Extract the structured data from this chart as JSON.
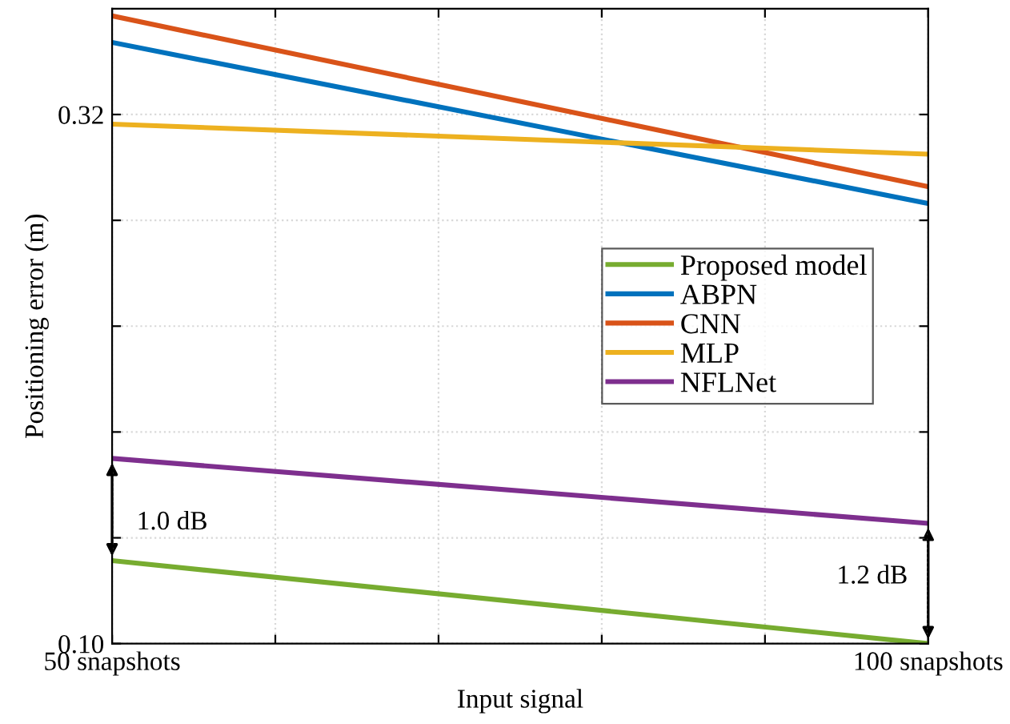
{
  "chart_data": {
    "type": "line",
    "xlabel": "Input signal",
    "ylabel": "Positioning error (m)",
    "x": [
      50,
      100
    ],
    "series": [
      {
        "name": "Proposed model",
        "color": "#77ac30",
        "values": [
          0.1345,
          0.1
        ]
      },
      {
        "name": "ABPN",
        "color": "#0072bd",
        "values": [
          0.35,
          0.283
        ]
      },
      {
        "name": "CNN",
        "color": "#d95319",
        "values": [
          0.361,
          0.29
        ]
      },
      {
        "name": "MLP",
        "color": "#edb120",
        "values": [
          0.316,
          0.3035
        ]
      },
      {
        "name": "NFLNet",
        "color": "#7e2f8e",
        "values": [
          0.177,
          0.15
        ]
      }
    ],
    "xlim": [
      50,
      100
    ],
    "xticks": [
      {
        "value": 50,
        "label": "50 snapshots"
      },
      {
        "value": 60,
        "label": null
      },
      {
        "value": 70,
        "label": null
      },
      {
        "value": 80,
        "label": null
      },
      {
        "value": 90,
        "label": null
      },
      {
        "value": 100,
        "label": "100 snapshots"
      }
    ],
    "ylim": [
      0.1,
      0.364
    ],
    "yticks": [
      {
        "value": 0.1,
        "label": "0.10"
      },
      {
        "value": 0.144,
        "label": null
      },
      {
        "value": 0.188,
        "label": null
      },
      {
        "value": 0.232,
        "label": null
      },
      {
        "value": 0.276,
        "label": null
      },
      {
        "value": 0.32,
        "label": "0.32"
      }
    ],
    "annotations": [
      "1.0 dB",
      "1.2 dB"
    ],
    "grid": true,
    "legend": "center right",
    "marker": "none",
    "line_style": "solid"
  }
}
